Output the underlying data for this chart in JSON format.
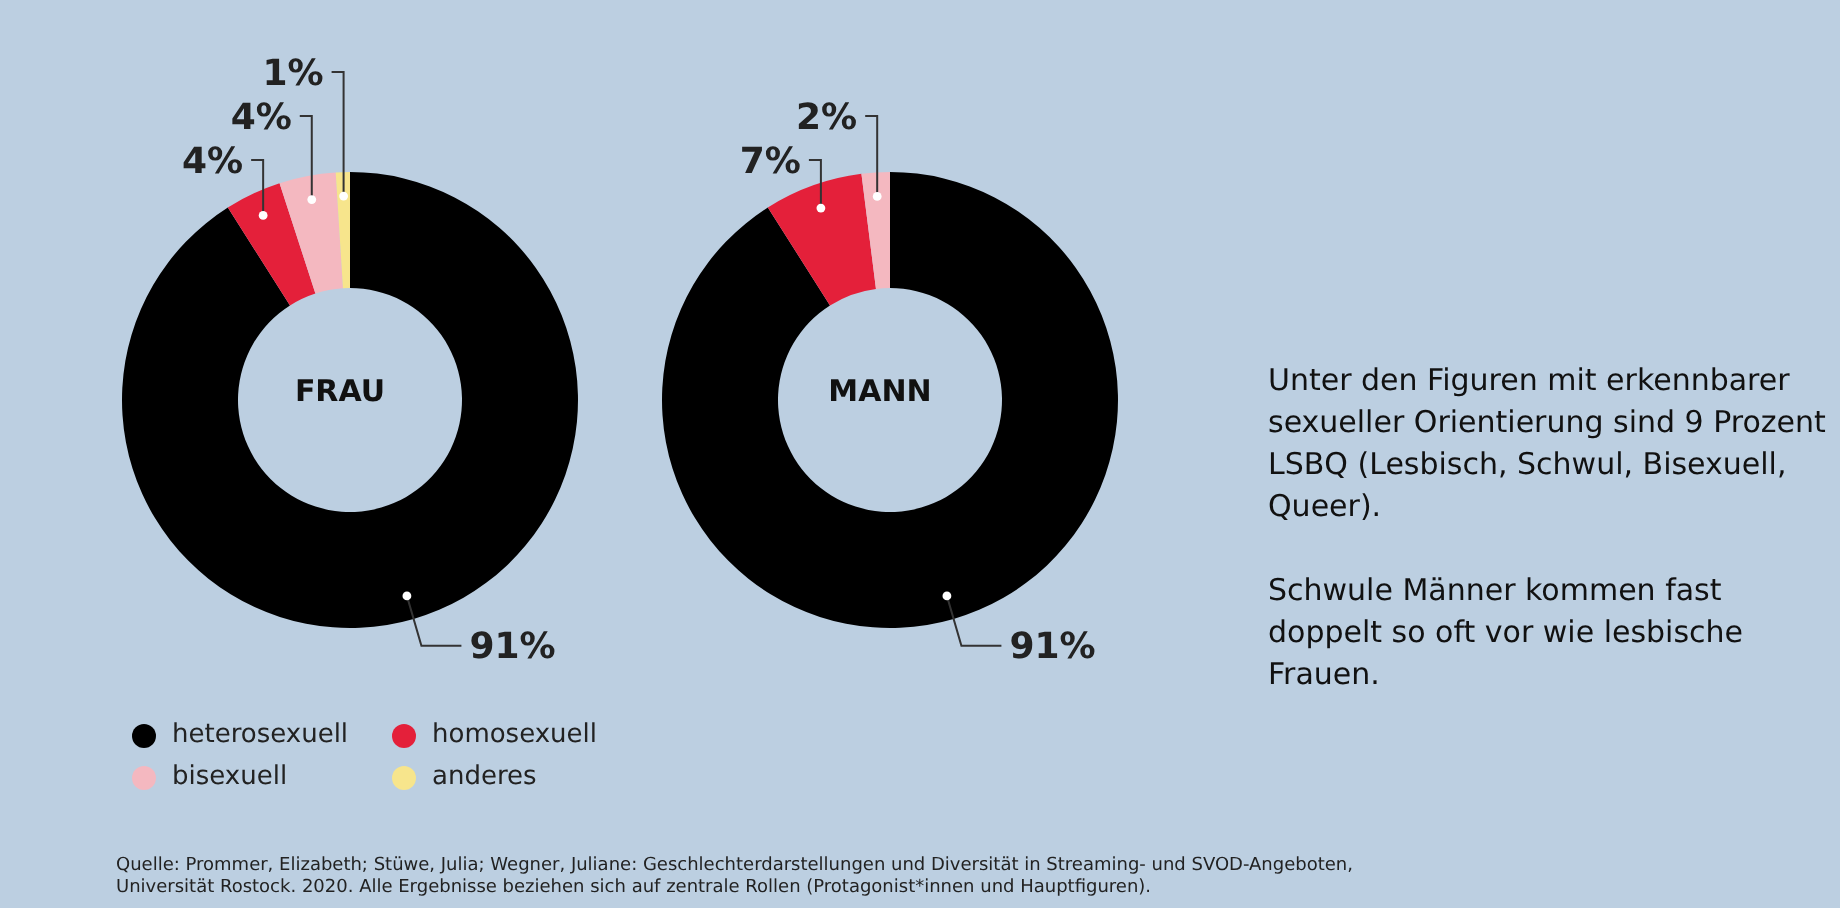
{
  "chart_data": [
    {
      "type": "donut",
      "title": "FRAU",
      "categories": [
        "heterosexuell",
        "homosexuell",
        "bisexuell",
        "anderes"
      ],
      "values": [
        91,
        4,
        4,
        1
      ],
      "colors": [
        "#000000",
        "#e4203a",
        "#f4b8c0",
        "#f7e58c"
      ],
      "value_labels": [
        "91%",
        "4%",
        "4%",
        "1%"
      ],
      "legend": "bottom",
      "annotations": [
        "Quelle: Prommer, Elizabeth; Stüwe, Julia; Wegner, Juliane: Geschlechterdarstellungen und Diversität in Streaming- und SVOD-Angeboten, Universität Rostock. 2020. Alle Ergebnisse beziehen sich auf zentrale Rollen (Protagonist*innen und Hauptfiguren)."
      ]
    },
    {
      "type": "donut",
      "title": "MANN",
      "categories": [
        null,
        null,
        null
      ],
      "values": [
        91,
        7,
        2
      ],
      "colors": [
        "#000000",
        "#e4203a",
        "#f4b8c0"
      ],
      "value_labels": [
        "91%",
        "7%",
        "2%"
      ]
    },
    {
      "type": "other",
      "annotations": [
        "Unter den Figuren mit erkennbarer sexueller Orientierung sind 9 Prozent LSBQ (Lesbisch, Schwul, Bisexuell, Queer).",
        "Schwule Männer kommen fast doppelt so oft vor wie lesbische Frauen."
      ]
    }
  ]
}
